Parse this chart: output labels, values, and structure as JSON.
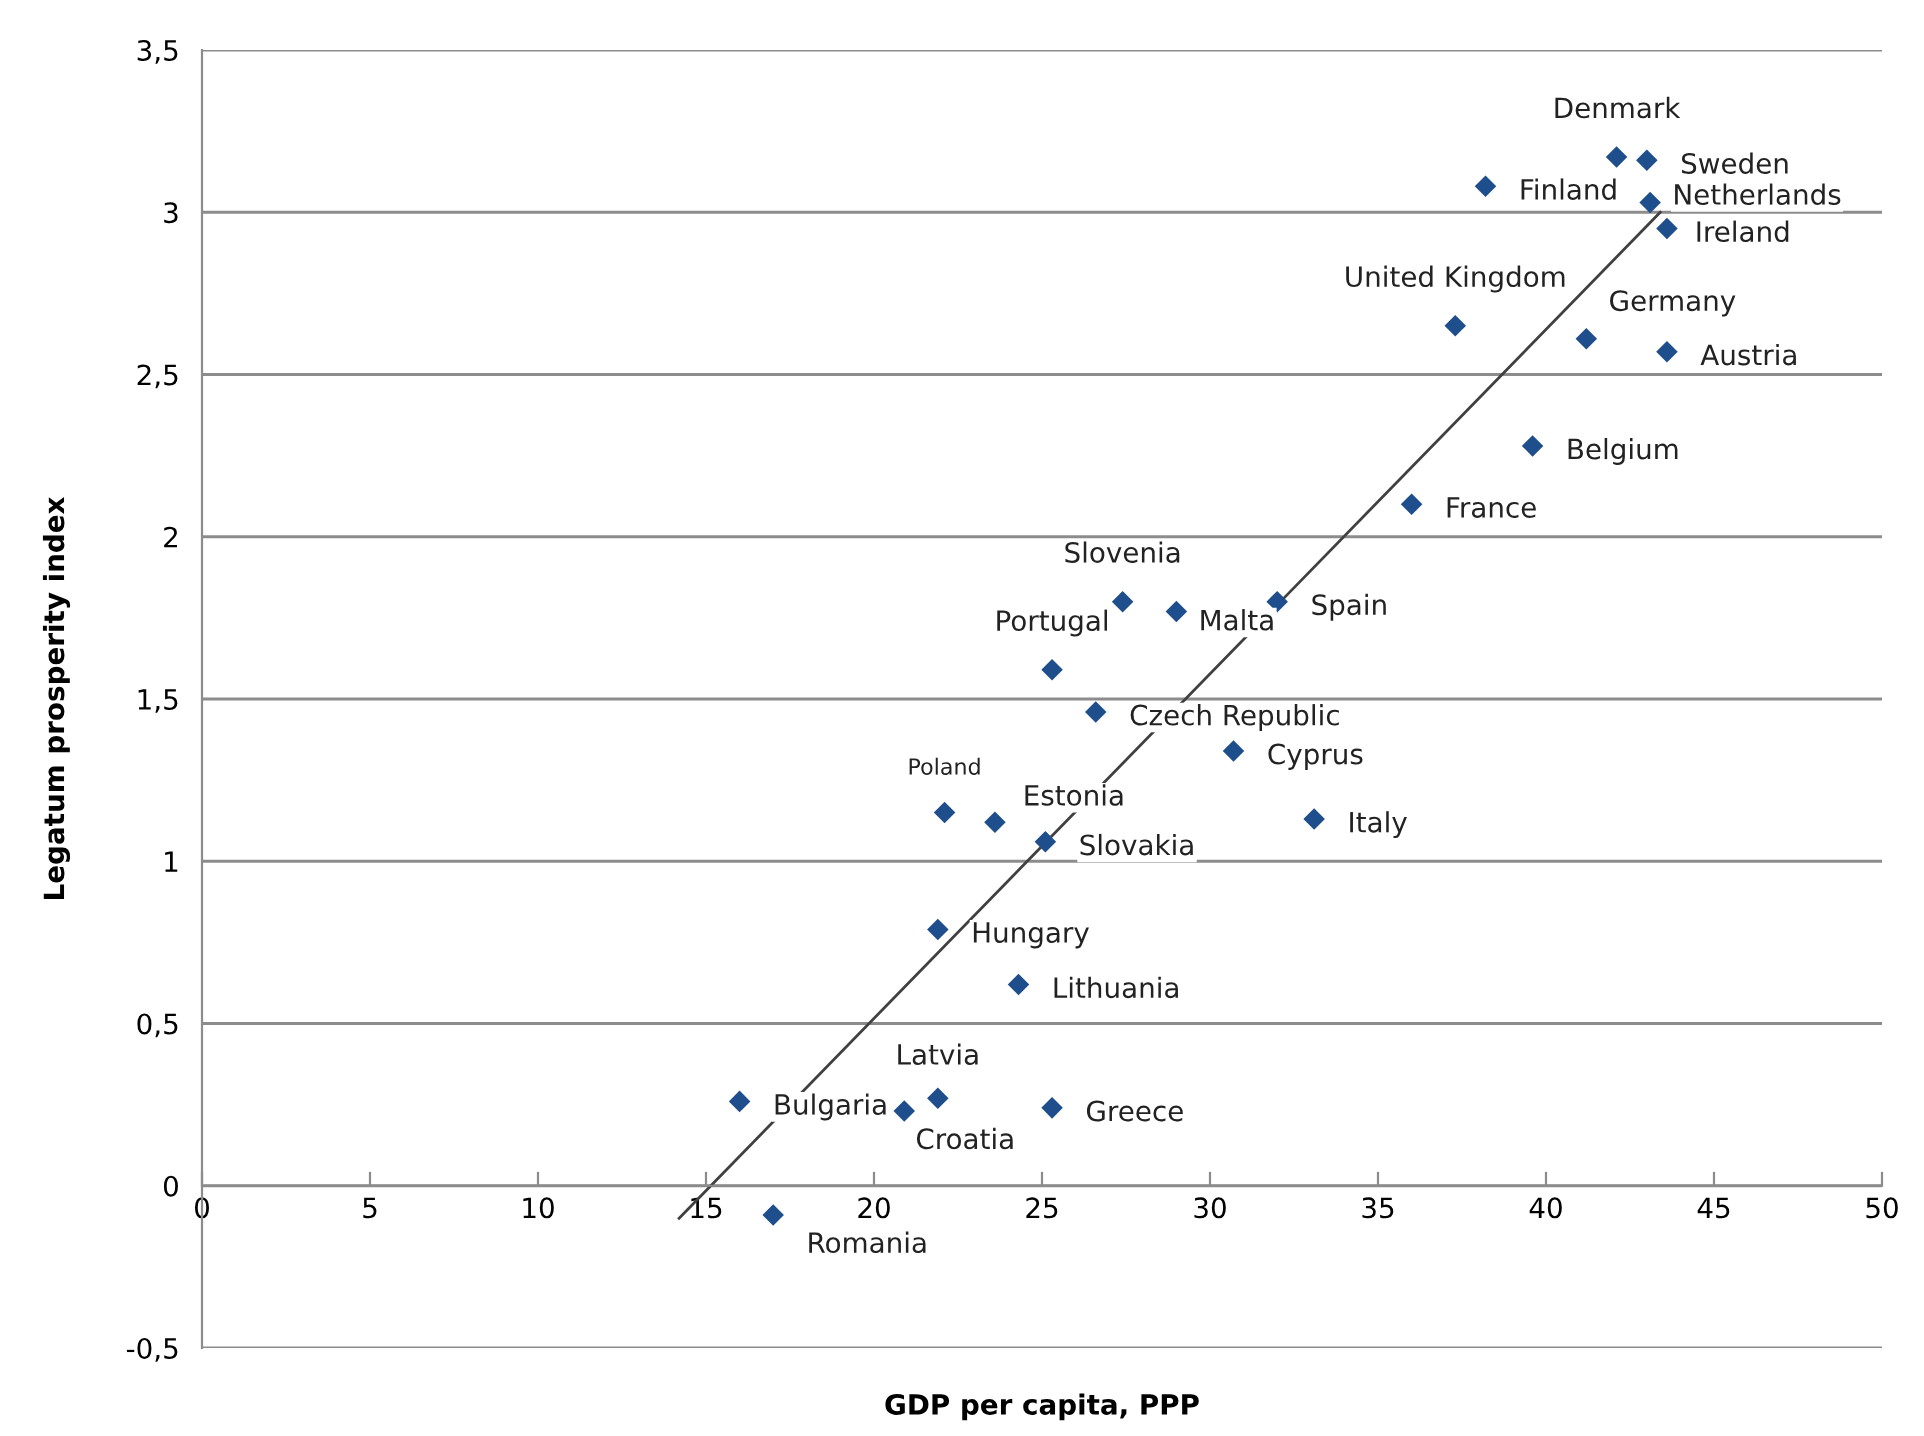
{
  "chart_data": {
    "type": "scatter",
    "xlabel": "GDP per capita, PPP",
    "ylabel": "Legatum prosperity index",
    "xlim": [
      0,
      50
    ],
    "xticks": [
      0,
      5,
      10,
      15,
      20,
      25,
      30,
      35,
      40,
      45,
      50
    ],
    "ylim": [
      -0.5,
      3.5
    ],
    "yticks": [
      {
        "value": -0.5,
        "label": "-0,5"
      },
      0,
      {
        "value": 0.5,
        "label": "0,5"
      },
      1,
      {
        "value": 1.5,
        "label": "1,5"
      },
      2,
      {
        "value": 2.5,
        "label": "2,5"
      },
      3,
      {
        "value": 3.5,
        "label": "3,5"
      }
    ],
    "grid": "y",
    "legend": false,
    "marker": "diamond",
    "series": [
      {
        "color": "#1f4e8c",
        "x": [
          42.1,
          43.0,
          38.2,
          43.1,
          43.6,
          37.3,
          41.2,
          43.6,
          39.6,
          36.0,
          27.4,
          29.0,
          32.0,
          25.3,
          26.6,
          30.7,
          22.1,
          23.6,
          25.1,
          33.1,
          21.9,
          24.3,
          16.0,
          21.9,
          20.9,
          25.3,
          17.0
        ],
        "values": [
          3.17,
          3.16,
          3.08,
          3.03,
          2.95,
          2.65,
          2.61,
          2.57,
          2.28,
          2.1,
          1.8,
          1.77,
          1.8,
          1.59,
          1.46,
          1.34,
          1.15,
          1.12,
          1.06,
          1.13,
          0.79,
          0.62,
          0.26,
          0.27,
          0.23,
          0.24,
          -0.09
        ],
        "value_labels": [
          "Denmark",
          "Sweden",
          "Finland",
          "Netherlands",
          "Ireland",
          "United Kingdom",
          "Germany",
          "Austria",
          "Belgium",
          "France",
          "Slovenia",
          "Malta",
          "Spain",
          "Portugal",
          "Czech Republic",
          "Cyprus",
          "Poland",
          "Estonia",
          "Slovakia",
          "Italy",
          "Hungary",
          "Lithuania",
          "Bulgaria",
          "Latvia",
          "Croatia",
          "Greece",
          "Romania"
        ]
      },
      {
        "type": "line",
        "color": "#404040",
        "x": [
          14.2,
          43.4
        ],
        "values": [
          -0.1,
          3.0
        ],
        "line_style": "solid",
        "marker": "none"
      }
    ]
  }
}
